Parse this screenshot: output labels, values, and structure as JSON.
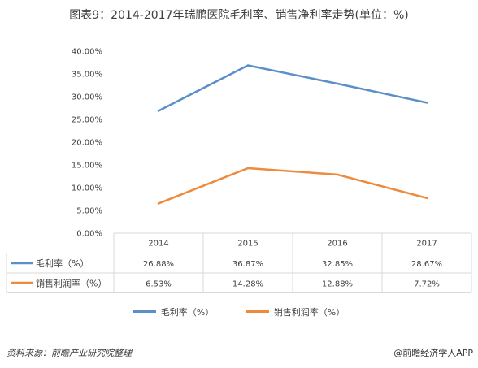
{
  "title": "图表9：2014-2017年瑞鹏医院毛利率、销售净利率走势(单位：%)",
  "source": "资料来源：前瞻产业研究院整理",
  "brand": "@前瞻经济学人APP",
  "colors": {
    "gross": "#5b8fc7",
    "net": "#ed8a3c",
    "grid": "#d9d9d9"
  },
  "chart_data": {
    "type": "line",
    "categories": [
      "2014",
      "2015",
      "2016",
      "2017"
    ],
    "series": [
      {
        "name": "毛利率（%）",
        "values": [
          26.88,
          36.87,
          32.85,
          28.67
        ],
        "labels": [
          "26.88%",
          "36.87%",
          "32.85%",
          "28.67%"
        ]
      },
      {
        "name": "销售利润率（%）",
        "values": [
          6.53,
          14.28,
          12.88,
          7.72
        ],
        "labels": [
          "6.53%",
          "14.28%",
          "12.88%",
          "7.72%"
        ]
      }
    ],
    "ylim": [
      0,
      40
    ],
    "yticks": [
      "0.00%",
      "5.00%",
      "10.00%",
      "15.00%",
      "20.00%",
      "25.00%",
      "30.00%",
      "35.00%",
      "40.00%"
    ],
    "grid": false,
    "legend": "bottom"
  }
}
